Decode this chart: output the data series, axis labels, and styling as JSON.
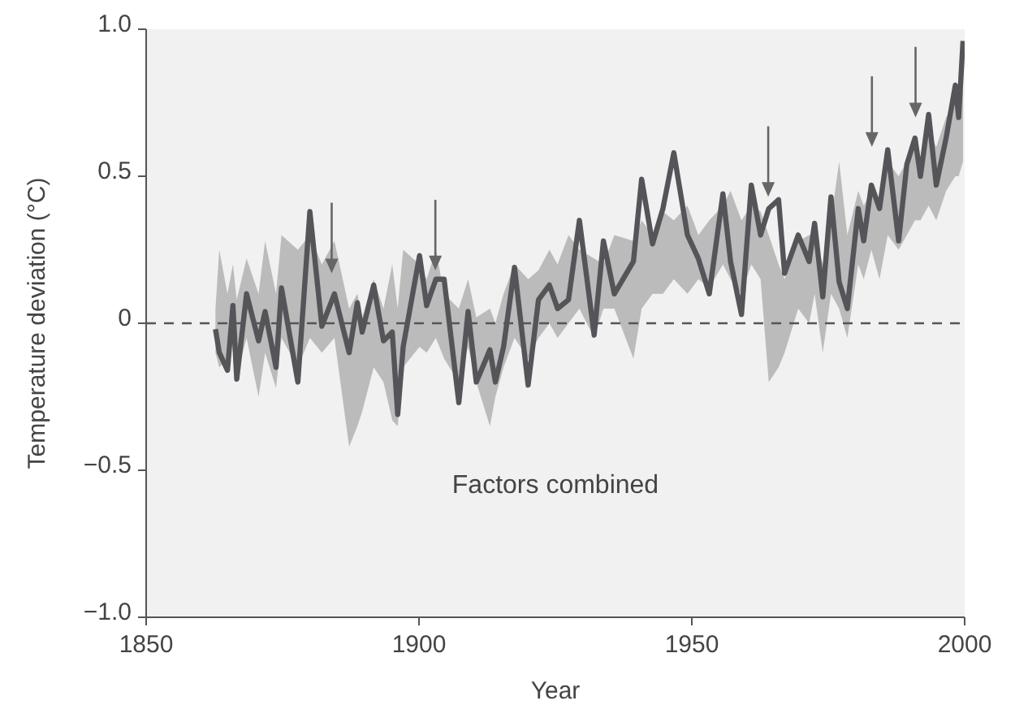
{
  "chart_data": {
    "type": "line",
    "xlabel": "Year",
    "ylabel": "Temperature deviation (°C)",
    "xlim": [
      1850,
      2000
    ],
    "xticks": [
      1850,
      1900,
      1950,
      2000
    ],
    "ylim": [
      -1,
      1
    ],
    "yticks": [
      {
        "value": -1,
        "label": "−1.0"
      },
      {
        "value": -0.5,
        "label": "−0.5"
      },
      0,
      0.5,
      {
        "value": 1,
        "label": "1.0"
      }
    ],
    "series": [
      {
        "color": "#555559",
        "x": [
          1862.7,
          1863.4,
          1864.9,
          1865.9,
          1866.6,
          1868.4,
          1870.6,
          1871.8,
          1873.8,
          1874.8,
          1877.8,
          1880,
          1882.2,
          1884.5,
          1887.2,
          1888.7,
          1889.6,
          1891.7,
          1893.5,
          1895.1,
          1896.1,
          1897.1,
          1900.1,
          1901.4,
          1903.1,
          1904.6,
          1907.3,
          1909,
          1910.5,
          1913,
          1914,
          1915.5,
          1917.5,
          1920,
          1921.9,
          1923.9,
          1925.4,
          1927.4,
          1929.4,
          1932.1,
          1933.8,
          1935.8,
          1939.3,
          1940.8,
          1942.8,
          1944.7,
          1946.7,
          1949.2,
          1951.2,
          1953.2,
          1955.7,
          1957.1,
          1959.1,
          1960.9,
          1962.6,
          1964.1,
          1965.9,
          1967,
          1969.5,
          1971.5,
          1972.5,
          1974,
          1975.5,
          1977,
          1978.5,
          1980.5,
          1981.5,
          1982.9,
          1984.4,
          1985.9,
          1987.9,
          1989.4,
          1990.9,
          1991.9,
          1993.4,
          1994.8,
          1996.6,
          1998.3,
          1998.9,
          1999.7
        ],
        "values": [
          -0.02,
          -0.1,
          -0.16,
          0.06,
          -0.19,
          0.1,
          -0.06,
          0.04,
          -0.15,
          0.12,
          -0.2,
          0.38,
          -0.01,
          0.1,
          -0.1,
          0.07,
          -0.03,
          0.13,
          -0.06,
          -0.03,
          -0.31,
          -0.08,
          0.23,
          0.06,
          0.15,
          0.15,
          -0.27,
          0.04,
          -0.2,
          -0.09,
          -0.2,
          -0.08,
          0.19,
          -0.21,
          0.08,
          0.13,
          0.05,
          0.08,
          0.35,
          -0.04,
          0.28,
          0.1,
          0.21,
          0.49,
          0.27,
          0.39,
          0.58,
          0.3,
          0.22,
          0.1,
          0.44,
          0.21,
          0.03,
          0.47,
          0.3,
          0.39,
          0.42,
          0.17,
          0.3,
          0.21,
          0.34,
          0.09,
          0.43,
          0.14,
          0.05,
          0.39,
          0.28,
          0.47,
          0.39,
          0.59,
          0.28,
          0.54,
          0.63,
          0.5,
          0.71,
          0.47,
          0.63,
          0.81,
          0.7,
          0.96
        ],
        "lower": [
          -0.1,
          -0.15,
          -0.12,
          -0.05,
          -0.18,
          -0.05,
          -0.25,
          -0.1,
          -0.22,
          -0.05,
          -0.15,
          -0.05,
          -0.1,
          -0.05,
          -0.42,
          -0.35,
          -0.3,
          -0.15,
          -0.2,
          -0.33,
          -0.35,
          -0.15,
          -0.08,
          -0.1,
          -0.05,
          -0.12,
          -0.2,
          -0.08,
          -0.2,
          -0.35,
          -0.25,
          -0.15,
          -0.05,
          -0.12,
          -0.05,
          0,
          -0.05,
          0,
          0.05,
          -0.05,
          0.05,
          0.05,
          -0.12,
          0.05,
          0.1,
          0.1,
          0.15,
          0.1,
          0.15,
          0.12,
          0.2,
          0.15,
          0.1,
          0.2,
          0.15,
          -0.2,
          -0.15,
          -0.1,
          0.05,
          0,
          0.1,
          -0.1,
          0.1,
          0.05,
          -0.05,
          0.2,
          0.15,
          0.25,
          0.15,
          0.3,
          0.25,
          0.3,
          0.35,
          0.35,
          0.4,
          0.35,
          0.45,
          0.5,
          0.5,
          0.55
        ],
        "upper": [
          0.05,
          0.25,
          0.1,
          0.2,
          0.08,
          0.22,
          0.1,
          0.28,
          0.1,
          0.3,
          0.25,
          0.3,
          0.2,
          0.28,
          0.05,
          0.1,
          0.02,
          0.15,
          0.05,
          0.2,
          0.05,
          0.25,
          0.2,
          0.15,
          0.25,
          0.1,
          0.05,
          0.15,
          0.02,
          0.05,
          0,
          0.1,
          0.2,
          0.15,
          0.18,
          0.25,
          0.2,
          0.3,
          0.25,
          0.22,
          0.2,
          0.3,
          0.28,
          0.35,
          0.3,
          0.38,
          0.35,
          0.4,
          0.3,
          0.35,
          0.4,
          0.45,
          0.35,
          0.4,
          0.38,
          0.3,
          0.2,
          0.15,
          0.28,
          0.3,
          0.3,
          0.2,
          0.35,
          0.55,
          0.3,
          0.45,
          0.4,
          0.45,
          0.4,
          0.55,
          0.5,
          0.55,
          0.6,
          0.55,
          0.65,
          0.6,
          0.7,
          0.75,
          0.72,
          0.8
        ]
      }
    ],
    "ref_lines": [
      {
        "axis": "y",
        "value": 0,
        "line_style": "dashed",
        "color": "#555559"
      }
    ],
    "annotations": [
      "Factors combined"
    ]
  }
}
